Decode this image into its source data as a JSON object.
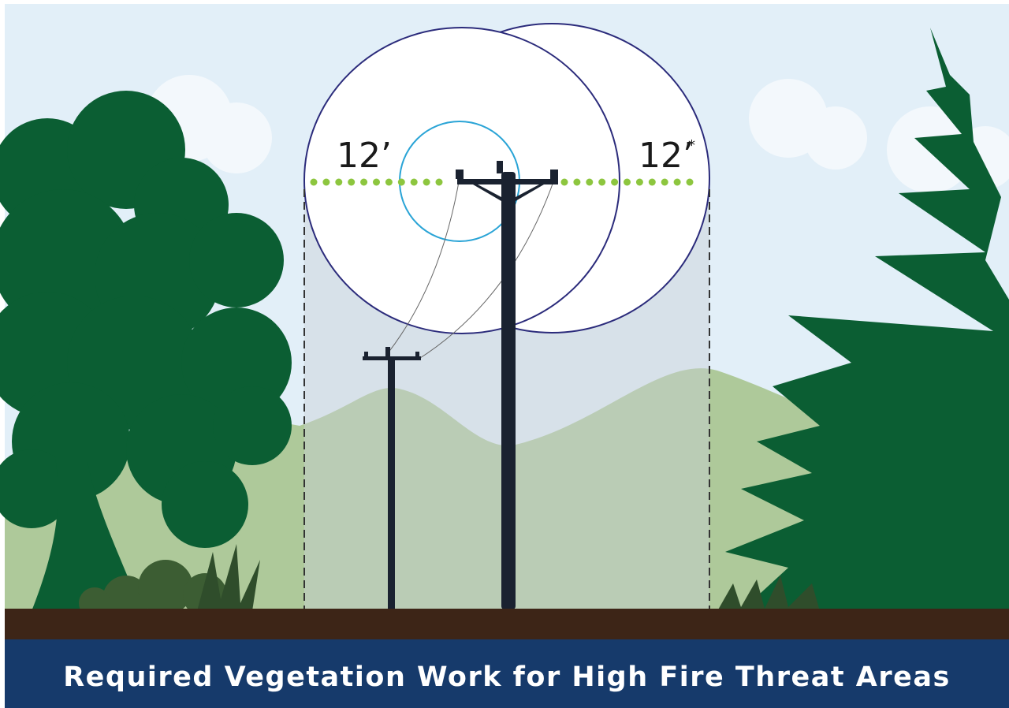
{
  "labels": {
    "left": "12’",
    "right": "12’",
    "right_note": "*"
  },
  "banner": {
    "title": "Required Vegetation Work for High Fire Threat Areas"
  }
}
